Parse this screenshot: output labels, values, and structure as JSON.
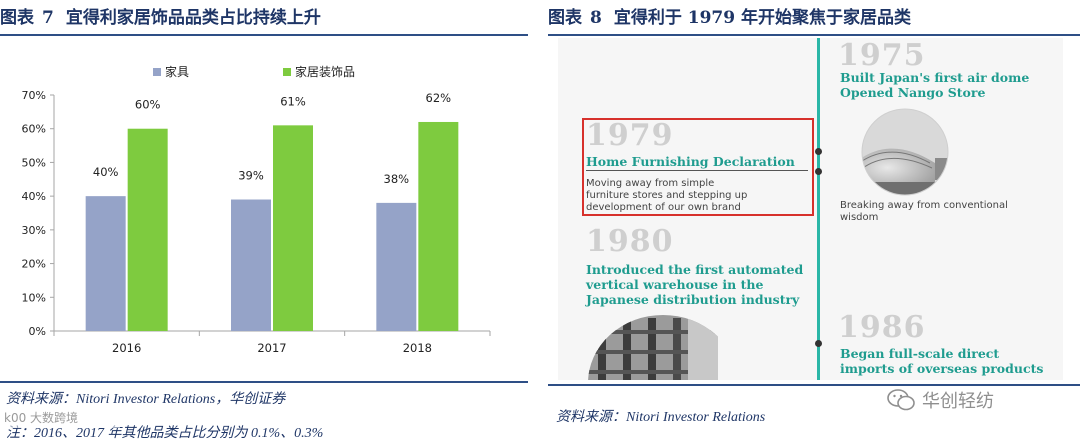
{
  "left_figure": {
    "label": "图表",
    "number": "7",
    "title": "宜得利家居饰品品类占比持续上升",
    "source": "资料来源：Nitori Investor Relations，华创证券",
    "note": "注：2016、2017 年其他品类占比分别为 0.1%、0.3%"
  },
  "right_figure": {
    "label": "图表",
    "number": "8",
    "title": "宜得利于 1979 年开始聚焦于家居品类",
    "source": "资料来源：Nitori Investor Relations"
  },
  "chart_data": {
    "type": "bar",
    "categories": [
      "2016",
      "2017",
      "2018"
    ],
    "series": [
      {
        "name": "家具",
        "values": [
          40,
          39,
          38
        ],
        "labels": [
          "40%",
          "39%",
          "38%"
        ],
        "color": "#95a3c8"
      },
      {
        "name": "家居装饰品",
        "values": [
          60,
          61,
          62
        ],
        "labels": [
          "60%",
          "61%",
          "62%"
        ],
        "color": "#7ecb3f"
      }
    ],
    "ylim": [
      0,
      70
    ],
    "yticks": [
      "0%",
      "10%",
      "20%",
      "30%",
      "40%",
      "50%",
      "60%",
      "70%"
    ],
    "ytick_values": [
      0,
      10,
      20,
      30,
      40,
      50,
      60,
      70
    ],
    "legend_position": "top",
    "grid": false
  },
  "timeline": {
    "entries": [
      {
        "year": "1975",
        "headline": [
          "Built Japan's first air dome",
          "Opened Nango Store"
        ],
        "description": [
          "Breaking away from conventional",
          "wisdom"
        ]
      },
      {
        "year": "1979",
        "headline": [
          "Home Furnishing Declaration"
        ],
        "description": [
          "Moving away from simple",
          "furniture stores and stepping up",
          "development of our own brand"
        ]
      },
      {
        "year": "1980",
        "headline": [
          "Introduced the first automated",
          "vertical warehouse in the",
          "Japanese distribution industry"
        ],
        "description": []
      },
      {
        "year": "1986",
        "headline": [
          "Began full-scale direct",
          "imports of overseas products"
        ],
        "description": []
      }
    ],
    "accent_color": "#2bb6a7",
    "highlight_color": "#d7312c"
  },
  "watermarks": {
    "left": "k00 大数跨境",
    "right": "华创轻纺"
  }
}
